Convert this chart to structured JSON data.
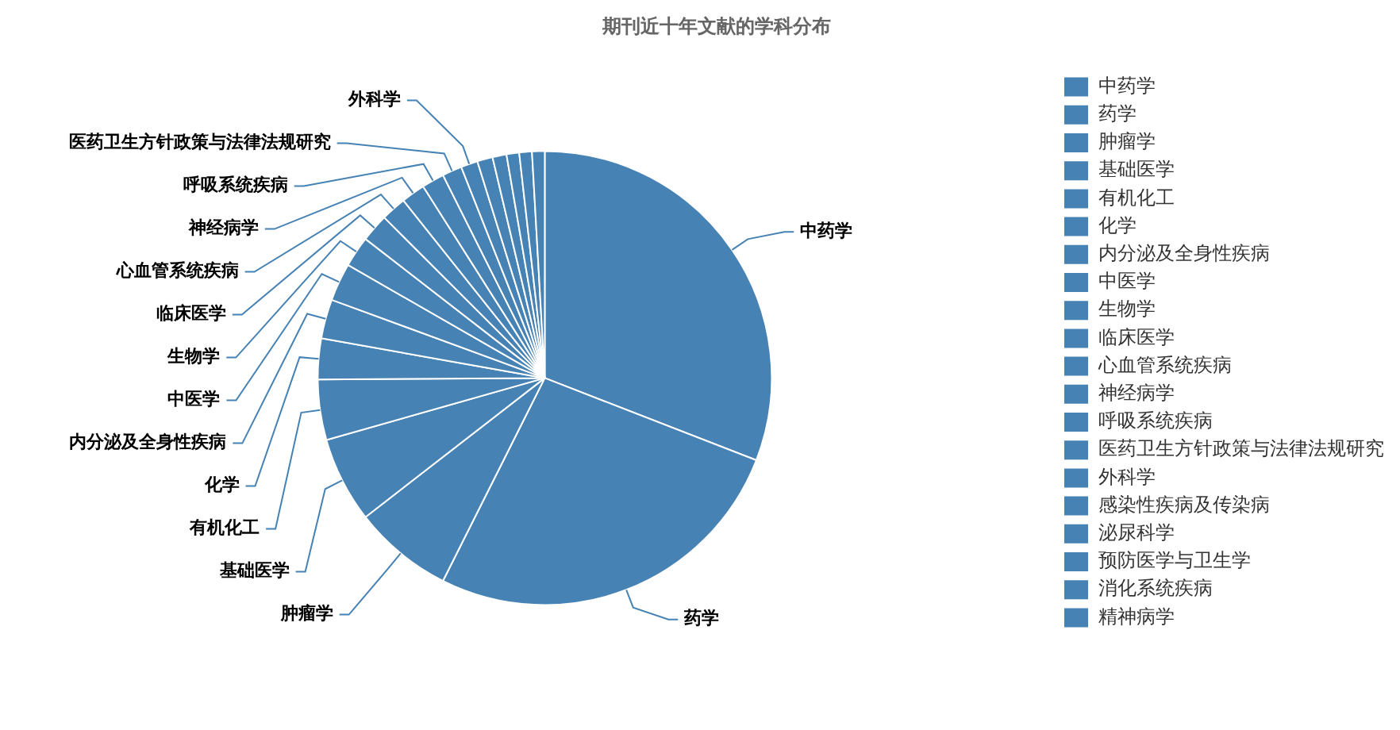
{
  "chart_data": {
    "type": "pie",
    "title": "期刊近十年文献的学科分布",
    "categories": [
      "中药学",
      "药学",
      "肿瘤学",
      "基础医学",
      "有机化工",
      "化学",
      "内分泌及全身性疾病",
      "中医学",
      "生物学",
      "临床医学",
      "心血管系统疾病",
      "神经病学",
      "呼吸系统疾病",
      "医药卫生方针政策与法律法规研究",
      "外科学",
      "感染性疾病及传染病",
      "泌尿科学",
      "预防医学与卫生学",
      "消化系统疾病",
      "精神病学"
    ],
    "values": [
      30.9,
      26.5,
      7.1,
      6.1,
      4.3,
      2.9,
      2.8,
      2.7,
      2.2,
      2.0,
      1.8,
      1.7,
      1.6,
      1.4,
      1.2,
      1.1,
      1.0,
      0.9,
      0.9,
      0.9
    ],
    "colors": [
      "#4682b4",
      "#4682b4",
      "#4682b4",
      "#4682b4",
      "#4682b4",
      "#4682b4",
      "#4682b4",
      "#4682b4",
      "#4682b4",
      "#4682b4",
      "#4682b4",
      "#4682b4",
      "#4682b4",
      "#4682b4",
      "#4682b4",
      "#4682b4",
      "#4682b4",
      "#4682b4",
      "#4682b4",
      "#4682b4"
    ],
    "legend": "right"
  }
}
